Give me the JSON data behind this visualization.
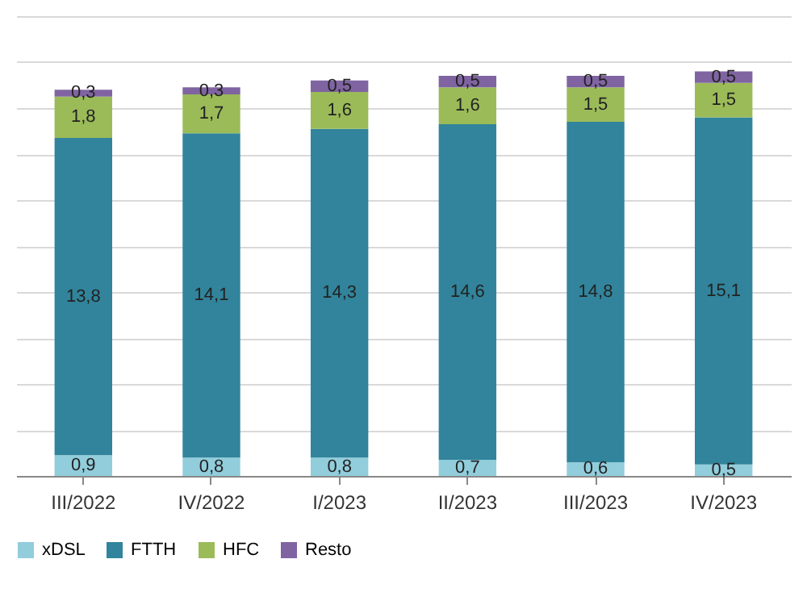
{
  "chart_data": {
    "type": "bar",
    "stacked": true,
    "categories": [
      "III/2022",
      "IV/2022",
      "I/2023",
      "II/2023",
      "III/2023",
      "IV/2023"
    ],
    "series": [
      {
        "name": "xDSL",
        "color": "#92cddc",
        "values": [
          0.9,
          0.8,
          0.8,
          0.7,
          0.6,
          0.5
        ],
        "value_labels": [
          "0,9",
          "0,8",
          "0,8",
          "0,7",
          "0,6",
          "0,5"
        ]
      },
      {
        "name": "FTTH",
        "color": "#31849b",
        "values": [
          13.8,
          14.1,
          14.3,
          14.6,
          14.8,
          15.1
        ],
        "value_labels": [
          "13,8",
          "14,1",
          "14,3",
          "14,6",
          "14,8",
          "15,1"
        ]
      },
      {
        "name": "HFC",
        "color": "#9bbb59",
        "values": [
          1.8,
          1.7,
          1.6,
          1.6,
          1.5,
          1.5
        ],
        "value_labels": [
          "1,8",
          "1,7",
          "1,6",
          "1,6",
          "1,5",
          "1,5"
        ]
      },
      {
        "name": "Resto",
        "color": "#8064a2",
        "values": [
          0.3,
          0.3,
          0.5,
          0.5,
          0.5,
          0.5
        ],
        "value_labels": [
          "0,3",
          "0,3",
          "0,5",
          "0,5",
          "0,5",
          "0,5"
        ]
      }
    ],
    "ylim": [
      0,
      20
    ],
    "grid": "y",
    "tick_labels": "x",
    "legend": "bottom"
  }
}
